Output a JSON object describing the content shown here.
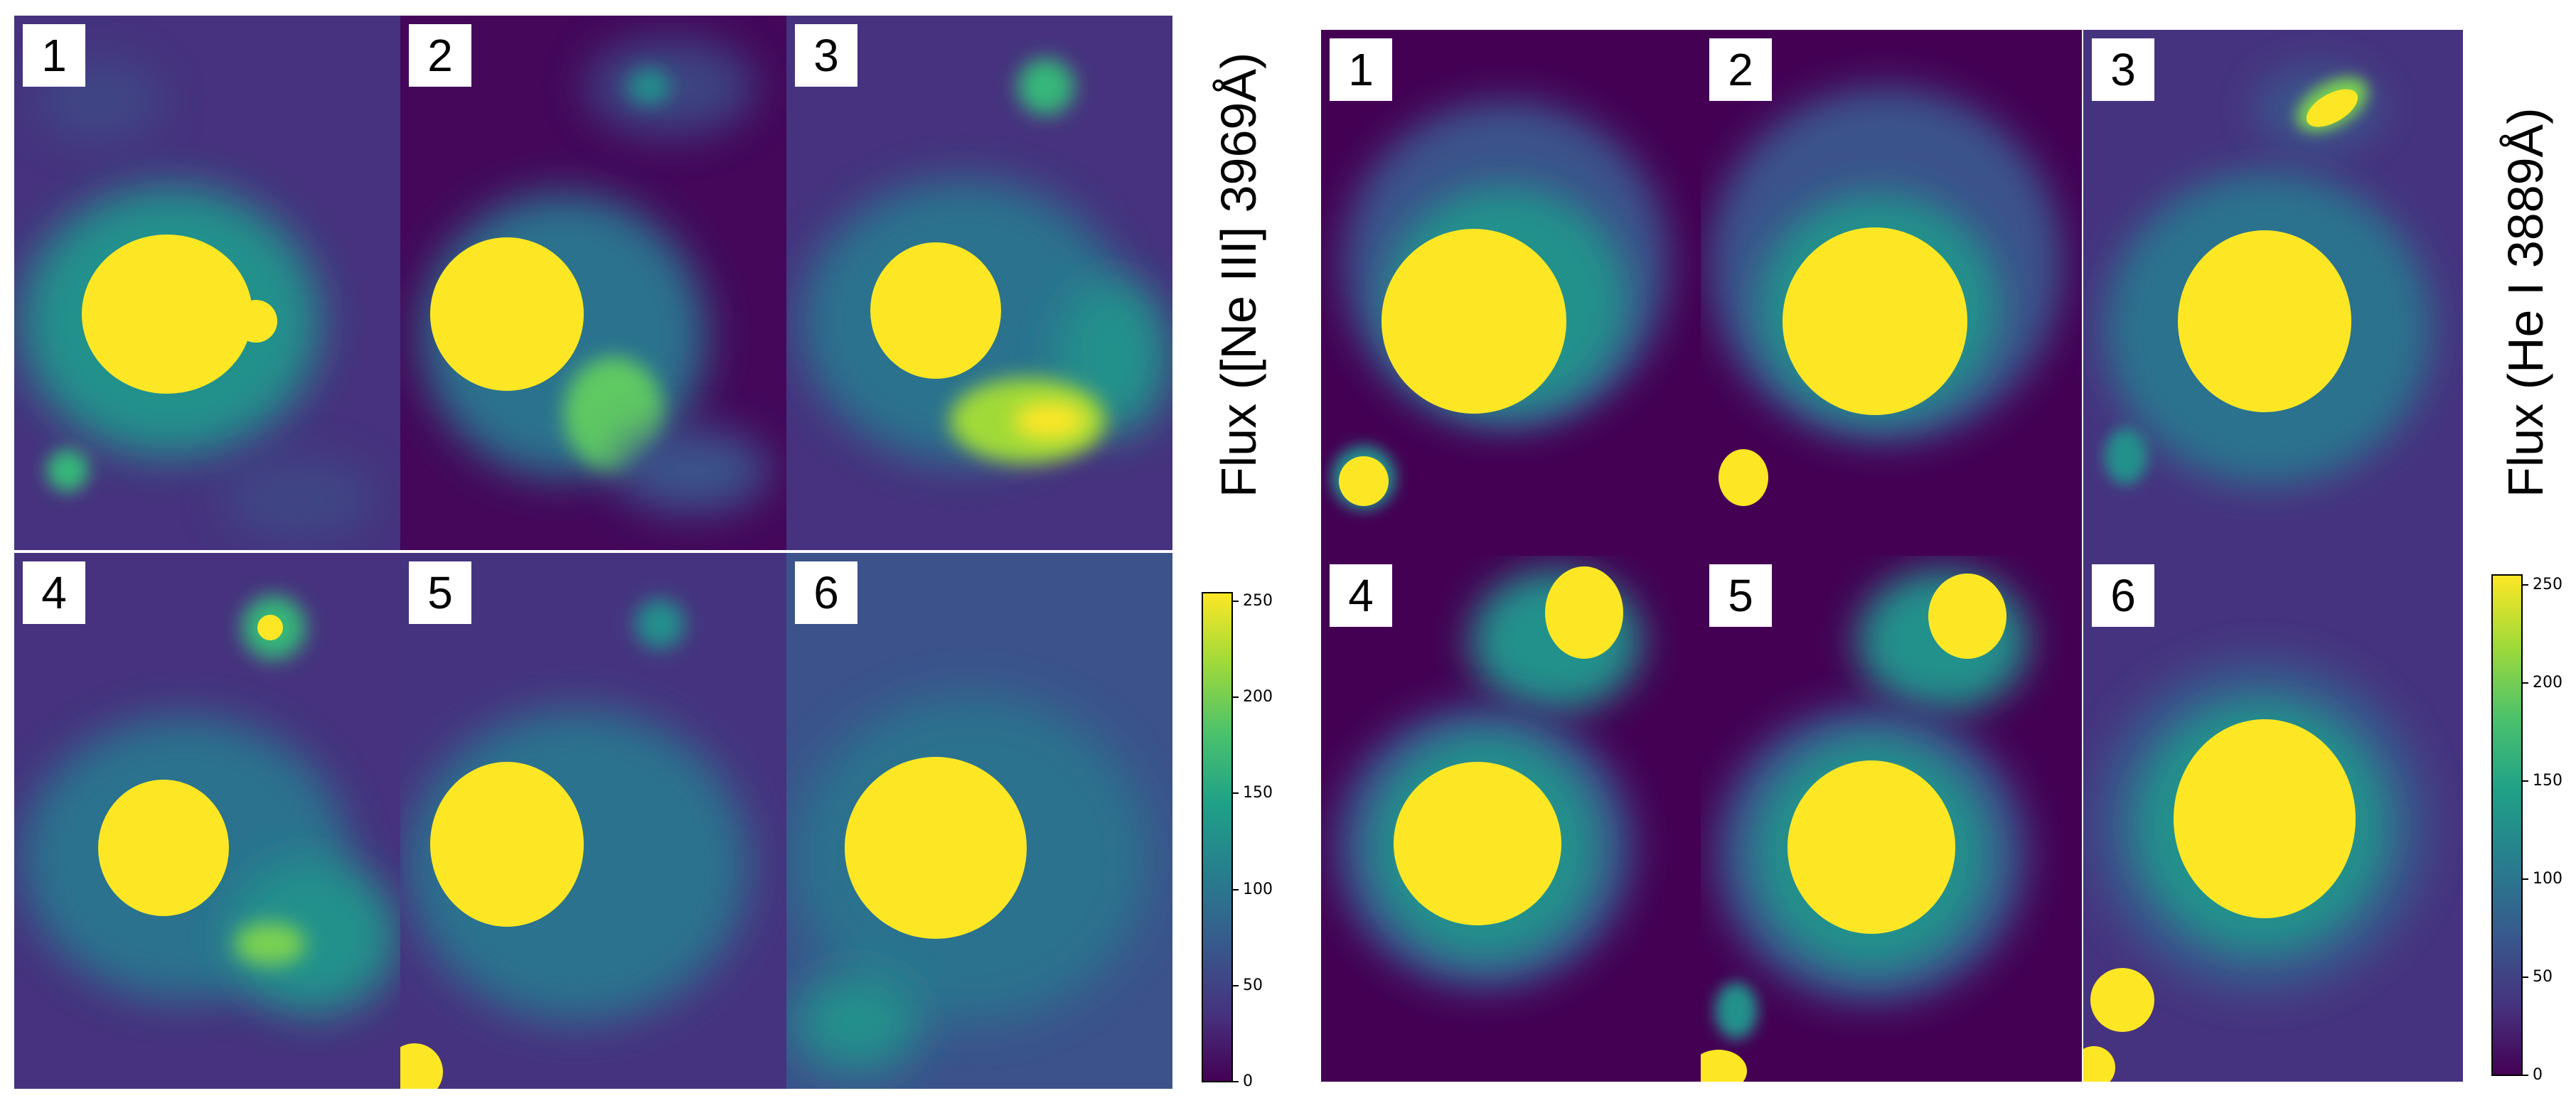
{
  "colors": {
    "viridis": [
      "#440154",
      "#46337f",
      "#365c8d",
      "#277f8e",
      "#1fa187",
      "#4ac16d",
      "#a0da39",
      "#fde725"
    ],
    "background": "#44065a"
  },
  "left_figure": {
    "label": "Flux ([Ne III] 3969Å)",
    "panels": [
      {
        "num": "1"
      },
      {
        "num": "2"
      },
      {
        "num": "3"
      },
      {
        "num": "4"
      },
      {
        "num": "5"
      },
      {
        "num": "6"
      }
    ],
    "colorbar": {
      "ticks": [
        "0",
        "50",
        "100",
        "150",
        "200",
        "250"
      ],
      "min": 0,
      "max": 255
    }
  },
  "right_figure": {
    "label": "Flux (He I 3889Å)",
    "panels": [
      {
        "num": "1"
      },
      {
        "num": "2"
      },
      {
        "num": "3"
      },
      {
        "num": "4"
      },
      {
        "num": "5"
      },
      {
        "num": "6"
      }
    ],
    "colorbar": {
      "ticks": [
        "0",
        "50",
        "100",
        "150",
        "200",
        "250"
      ],
      "min": 0,
      "max": 255
    }
  }
}
